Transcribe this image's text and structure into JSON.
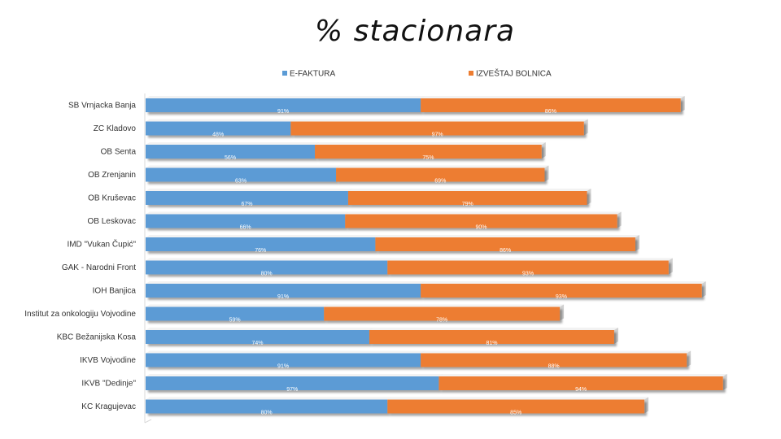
{
  "chart_data": {
    "type": "bar",
    "orientation": "horizontal",
    "stacked": true,
    "title": "% stacionara",
    "legend_position": "top",
    "categories": [
      "SB Vrnjacka Banja",
      "ZC Kladovo",
      "OB Senta",
      "OB Zrenjanin",
      "OB Kruševac",
      "OB Leskovac",
      "IMD \"Vukan Čupić\"",
      "GAK - Narodni Front",
      "IOH Banjica",
      "Institut za onkologiju Vojvodine",
      "KBC Bežanijska Kosa",
      "IKVB Vojvodine",
      "IKVB \"Dedinje\"",
      "KC Kragujevac"
    ],
    "series": [
      {
        "name": "E-FAKTURA",
        "color": "#5b9bd5",
        "values": [
          91,
          48,
          56,
          63,
          67,
          66,
          76,
          80,
          91,
          59,
          74,
          91,
          97,
          80
        ],
        "labels": [
          "91%",
          "48%",
          "56%",
          "63%",
          "67%",
          "66%",
          "76%",
          "80%",
          "91%",
          "59%",
          "74%",
          "91%",
          "97%",
          "80%"
        ]
      },
      {
        "name": "IZVEŠTAJ BOLNICA",
        "color": "#ed7d31",
        "values": [
          86,
          97,
          75,
          69,
          79,
          90,
          86,
          93,
          93,
          78,
          81,
          88,
          94,
          85
        ],
        "labels": [
          "86%",
          "97%",
          "75%",
          "69%",
          "79%",
          "90%",
          "86%",
          "93%",
          "93%",
          "78%",
          "81%",
          "88%",
          "94%",
          "85%"
        ]
      }
    ],
    "xlim": [
      0,
      190
    ],
    "grid": false
  }
}
